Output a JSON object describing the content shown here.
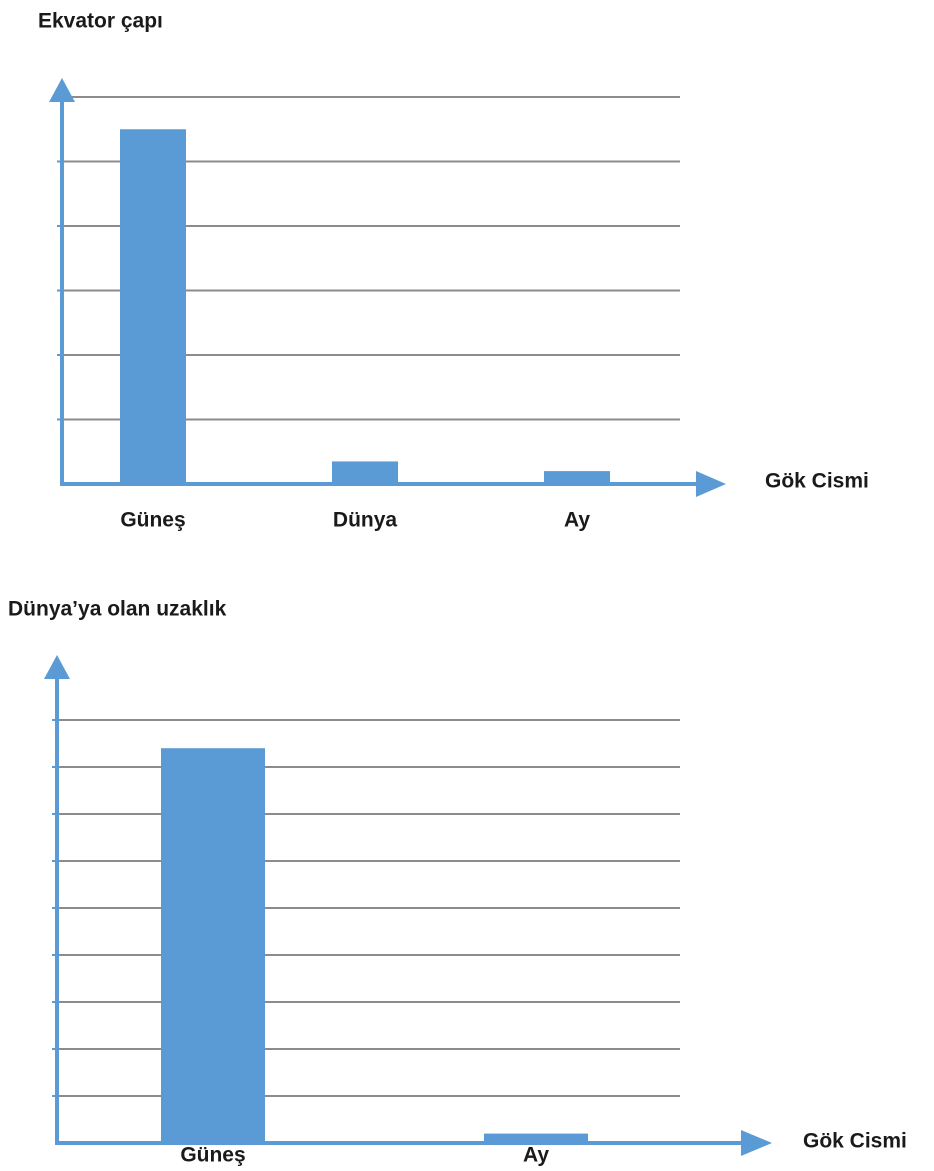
{
  "chart_data": [
    {
      "type": "bar",
      "title": "Ekvator çapı",
      "x_label": "Gök Cismi",
      "categories": [
        "Güneş",
        "Dünya",
        "Ay"
      ],
      "values": [
        5.5,
        0.35,
        0.2
      ],
      "color": "#5b9bd5",
      "ylim": [
        0,
        6.3
      ],
      "yticks": [
        1,
        2,
        3,
        4,
        5,
        6
      ],
      "grid": true
    },
    {
      "type": "bar",
      "title": "Dünya’ya olan uzaklık",
      "x_label": "Gök Cismi",
      "categories": [
        "Güneş",
        "Ay"
      ],
      "values": [
        8.4,
        0.2
      ],
      "color": "#5b9bd5",
      "ylim": [
        0,
        10
      ],
      "yticks": [
        1,
        2,
        3,
        4,
        5,
        6,
        7,
        8,
        9
      ],
      "grid": true
    }
  ]
}
